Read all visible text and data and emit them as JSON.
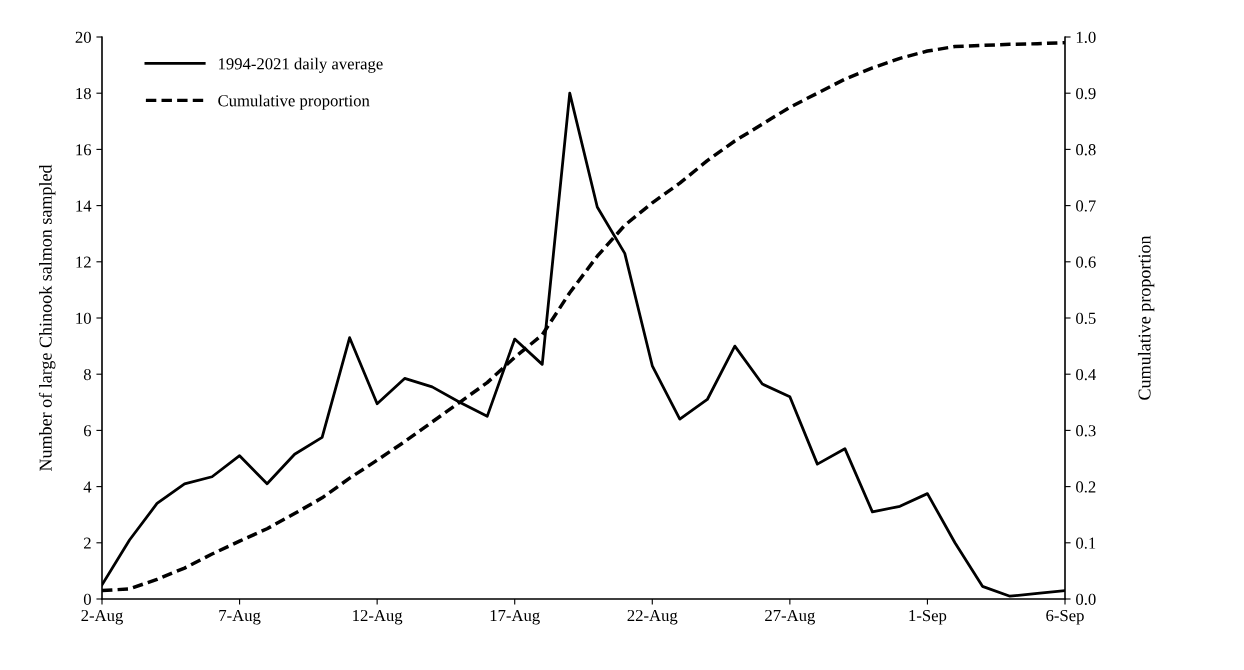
{
  "chart_data": {
    "type": "line",
    "ylabel": "Number of large Chinook salmon sampled",
    "y2label": "Cumulative proportion",
    "categories": [
      "2-Aug",
      null,
      null,
      null,
      null,
      "7-Aug",
      null,
      null,
      null,
      null,
      "12-Aug",
      null,
      null,
      null,
      null,
      "17-Aug",
      null,
      null,
      null,
      null,
      "22-Aug",
      null,
      null,
      null,
      null,
      "27-Aug",
      null,
      null,
      null,
      null,
      "1-Sep",
      null,
      null,
      null,
      null,
      "6-Sep"
    ],
    "series": [
      {
        "name": "1994-2021 daily average",
        "color": "#000000",
        "line_style": "solid",
        "values": [
          0.5,
          2.1,
          3.4,
          4.1,
          4.35,
          5.1,
          4.1,
          5.15,
          5.75,
          9.3,
          6.95,
          7.85,
          7.55,
          7.0,
          6.5,
          9.25,
          8.35,
          18.0,
          13.95,
          12.3,
          8.3,
          6.4,
          7.1,
          9.0,
          7.65,
          7.2,
          4.8,
          5.35,
          3.1,
          3.3,
          3.75,
          2.0,
          0.45,
          0.1,
          0.2,
          0.3
        ]
      },
      {
        "name": "Cumulative proportion",
        "color": "#000000",
        "line_style": "dashed",
        "axis": "y2",
        "values": [
          0.015,
          0.018,
          0.035,
          0.055,
          0.08,
          0.103,
          0.125,
          0.152,
          0.18,
          0.215,
          0.247,
          0.28,
          0.315,
          0.35,
          0.385,
          0.43,
          0.47,
          0.545,
          0.61,
          0.665,
          0.705,
          0.74,
          0.78,
          0.815,
          0.845,
          0.875,
          0.9,
          0.925,
          0.945,
          0.962,
          0.975,
          0.983,
          0.985,
          0.987,
          0.988,
          0.99
        ]
      }
    ],
    "ylim": [
      0,
      20
    ],
    "yticks": [
      0,
      2,
      4,
      6,
      8,
      10,
      12,
      14,
      16,
      18,
      20
    ],
    "y2lim": [
      0,
      1
    ],
    "y2ticks": [
      {
        "value": 0,
        "label": "0.0"
      },
      {
        "value": 0.1,
        "label": "0.1"
      },
      {
        "value": 0.2,
        "label": "0.2"
      },
      {
        "value": 0.3,
        "label": "0.3"
      },
      {
        "value": 0.4,
        "label": "0.4"
      },
      {
        "value": 0.5,
        "label": "0.5"
      },
      {
        "value": 0.6,
        "label": "0.6"
      },
      {
        "value": 0.7,
        "label": "0.7"
      },
      {
        "value": 0.8,
        "label": "0.8"
      },
      {
        "value": 0.9,
        "label": "0.9"
      },
      {
        "value": 1,
        "label": "1.0"
      }
    ],
    "legend": "top left",
    "grid": false,
    "marker": "none"
  }
}
